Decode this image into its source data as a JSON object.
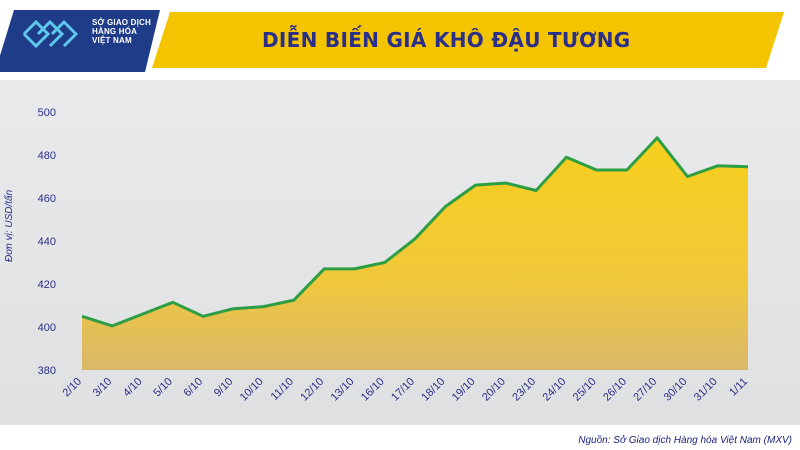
{
  "header": {
    "title": "DIỄN BIẾN GIÁ KHÔ ĐẬU TƯƠNG",
    "logo_lines": [
      "SỞ GIAO DỊCH",
      "HÀNG HÓA",
      "VIỆT NAM"
    ]
  },
  "source": "Nguồn: Sở Giao dịch Hàng hóa Việt Nam (MXV)",
  "colors": {
    "accent_yellow": "#f5c400",
    "title_blue": "#2b2f8a",
    "logo_blue": "#1f3c88",
    "line_green": "#2e9e45",
    "area_yellow": "#f3c620"
  },
  "chart_data": {
    "type": "area",
    "title": "DIỄN BIẾN GIÁ KHÔ ĐẬU TƯƠNG",
    "xlabel": "",
    "ylabel": "Đơn vị: USD/tấn",
    "categories": [
      "2/10",
      "3/10",
      "4/10",
      "5/10",
      "6/10",
      "9/10",
      "10/10",
      "11/10",
      "12/10",
      "13/10",
      "16/10",
      "17/10",
      "18/10",
      "19/10",
      "20/10",
      "23/10",
      "24/10",
      "25/10",
      "26/10",
      "27/10",
      "30/10",
      "31/10",
      "1/11"
    ],
    "values": [
      405,
      400.5,
      406,
      411.5,
      405,
      408.5,
      409.5,
      412.5,
      427,
      427,
      430,
      441,
      456,
      466,
      467,
      463.5,
      479,
      473,
      473,
      488,
      470,
      475,
      474.5
    ],
    "ylim": [
      380,
      500
    ],
    "yticks": [
      380,
      400,
      420,
      440,
      460,
      480,
      500
    ],
    "grid": false,
    "legend": "none"
  }
}
